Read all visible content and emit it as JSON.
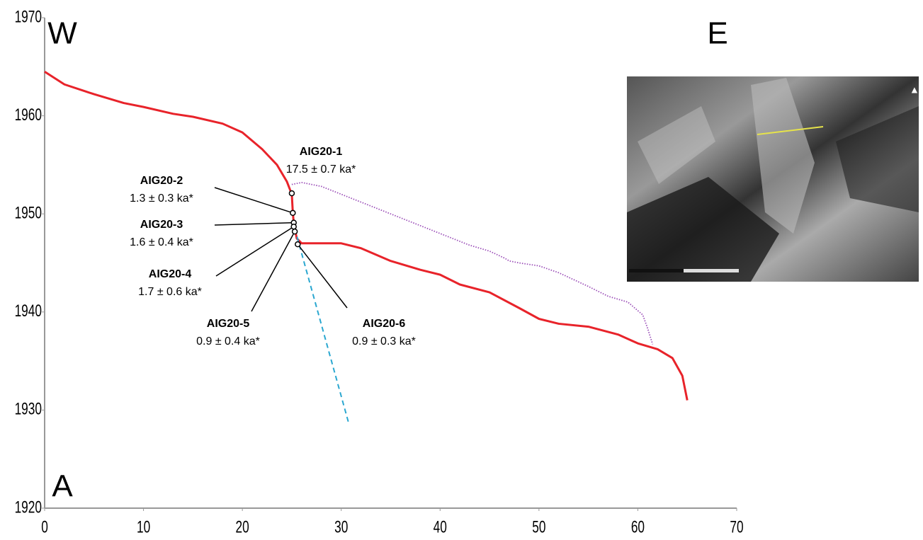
{
  "chart_data": {
    "type": "line",
    "xlim": [
      0,
      70
    ],
    "xticks": [
      0,
      10,
      20,
      30,
      40,
      50,
      60,
      70
    ],
    "ylim": [
      1920,
      1970
    ],
    "yticks": [
      1920,
      1930,
      1940,
      1950,
      1960,
      1970
    ],
    "annotations": [
      "W",
      "E",
      "A"
    ],
    "series": [
      {
        "color": "#e8232a",
        "style": "solid",
        "x": [
          0,
          2,
          5,
          8,
          10,
          13,
          15,
          18,
          20,
          22,
          23.5,
          24.5,
          25,
          25.1,
          25.2,
          25.5,
          26,
          28,
          30,
          32,
          35,
          38,
          40,
          42,
          45,
          48,
          50,
          52,
          55,
          58,
          60,
          62,
          63.5,
          64.5,
          65
        ],
        "values": [
          1964.5,
          1963.2,
          1962.2,
          1961.3,
          1960.9,
          1960.2,
          1959.9,
          1959.2,
          1958.3,
          1956.6,
          1955,
          1953.3,
          1952,
          1950.2,
          1949,
          1947.5,
          1947,
          1947,
          1947,
          1946.5,
          1945.2,
          1944.3,
          1943.8,
          1942.8,
          1942,
          1940.4,
          1939.3,
          1938.8,
          1938.5,
          1937.7,
          1936.8,
          1936.2,
          1935.3,
          1933.5,
          1931
        ]
      },
      {
        "color": "#9b4fb8",
        "style": "dotted",
        "x": [
          25,
          26,
          28,
          30,
          32,
          35,
          38,
          40,
          43,
          45,
          46.5,
          47,
          48,
          50,
          52,
          55,
          57,
          59,
          60.5,
          61,
          61.5
        ],
        "values": [
          1953,
          1953.2,
          1952.8,
          1952,
          1951.2,
          1950,
          1948.8,
          1948,
          1946.8,
          1946.2,
          1945.5,
          1945.2,
          1945,
          1944.7,
          1944,
          1942.6,
          1941.6,
          1941,
          1939.7,
          1938.3,
          1936.7
        ]
      },
      {
        "color": "#2aa7d0",
        "style": "dashed",
        "x": [
          25.3,
          30.8
        ],
        "values": [
          1948.5,
          1928.5
        ]
      }
    ],
    "samples": [
      {
        "label": "AIG20-1",
        "age": "17.5 ± 0.7 ka*",
        "x": 25,
        "y": 1952.1
      },
      {
        "label": "AIG20-2",
        "age": "1.3 ± 0.3 ka*",
        "x": 25.1,
        "y": 1950.1
      },
      {
        "label": "AIG20-3",
        "age": "1.6 ± 0.4 ka*",
        "x": 25.2,
        "y": 1949.1
      },
      {
        "label": "AIG20-4",
        "age": "1.7 ± 0.6 ka*",
        "x": 25.2,
        "y": 1948.7
      },
      {
        "label": "AIG20-5",
        "age": "0.9 ± 0.4 ka*",
        "x": 25.3,
        "y": 1948.2
      },
      {
        "label": "AIG20-6",
        "age": "0.9 ± 0.3 ka*",
        "x": 25.6,
        "y": 1946.9
      }
    ]
  }
}
